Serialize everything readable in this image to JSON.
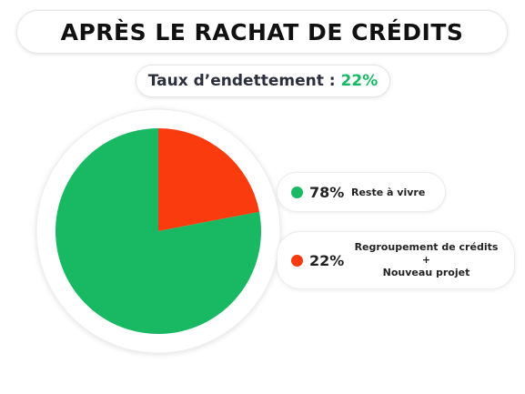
{
  "header": {
    "title": "APRÈS LE RACHAT DE CRÉDITS"
  },
  "rate": {
    "label": "Taux d’endettement :",
    "value": "22%"
  },
  "legend": {
    "items": [
      {
        "pct": "78%",
        "label": "Reste à vivre",
        "color": "#19b964"
      },
      {
        "pct": "22%",
        "label_line1": "Regroupement de crédits",
        "label_line2": "+",
        "label_line3": "Nouveau projet",
        "color": "#fa3b0e"
      }
    ]
  },
  "chart_data": {
    "type": "pie",
    "slices": [
      {
        "label": "Regroupement de crédits + Nouveau projet",
        "value": 22,
        "color": "#fa3b0e"
      },
      {
        "label": "Reste à vivre",
        "value": 78,
        "color": "#19b964"
      }
    ]
  }
}
